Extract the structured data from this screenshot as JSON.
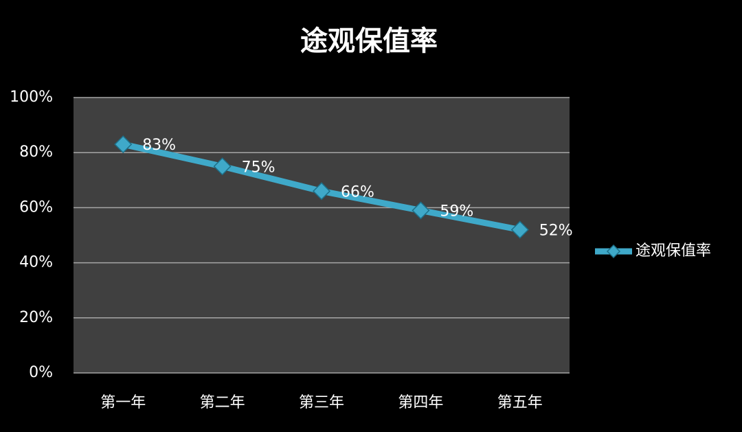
{
  "chart_data": {
    "type": "line",
    "title": "途观保值率",
    "categories": [
      "第一年",
      "第二年",
      "第三年",
      "第四年",
      "第五年"
    ],
    "series": [
      {
        "name": "途观保值率",
        "color": "#3fa9c9",
        "values": [
          83,
          75,
          66,
          59,
          52
        ],
        "value_labels": [
          "83%",
          "75%",
          "66%",
          "59%",
          "52%"
        ]
      }
    ],
    "ylim": [
      0,
      100
    ],
    "yticks": [
      {
        "value": 0,
        "label": "0%"
      },
      {
        "value": 20,
        "label": "20%"
      },
      {
        "value": 40,
        "label": "40%"
      },
      {
        "value": 60,
        "label": "60%"
      },
      {
        "value": 80,
        "label": "80%"
      },
      {
        "value": 100,
        "label": "100%"
      }
    ],
    "grid": true,
    "legend": "right"
  }
}
